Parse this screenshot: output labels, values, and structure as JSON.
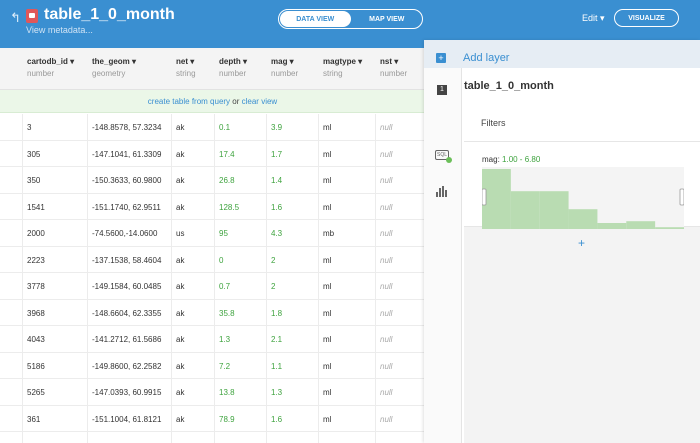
{
  "header": {
    "back_icon": "back-arrow-icon",
    "lock_icon": "lock-icon",
    "title": "table_1_0_month",
    "metadata_link": "View metadata...",
    "data_view": "DATA VIEW",
    "map_view": "MAP VIEW",
    "edit_label": "Edit ▾",
    "visualize_label": "VISUALIZE",
    "accent_color": "#3a8fd1"
  },
  "table": {
    "columns": [
      {
        "name": "cartodb_id ▾",
        "type": "number"
      },
      {
        "name": "the_geom ▾",
        "type": "geometry"
      },
      {
        "name": "net ▾",
        "type": "string"
      },
      {
        "name": "depth ▾",
        "type": "number"
      },
      {
        "name": "mag ▾",
        "type": "number"
      },
      {
        "name": "magtype ▾",
        "type": "string"
      },
      {
        "name": "nst ▾",
        "type": "number"
      }
    ],
    "banner": {
      "link1": "create table from query",
      "mid": " or ",
      "link2": "clear view"
    },
    "rows": [
      [
        "3",
        "-148.8578, 57.3234",
        "ak",
        "0.1",
        "3.9",
        "ml",
        "null"
      ],
      [
        "305",
        "-147.1041, 61.3309",
        "ak",
        "17.4",
        "1.7",
        "ml",
        "null"
      ],
      [
        "350",
        "-150.3633, 60.9800",
        "ak",
        "26.8",
        "1.4",
        "ml",
        "null"
      ],
      [
        "1541",
        "-151.1740, 62.9511",
        "ak",
        "128.5",
        "1.6",
        "ml",
        "null"
      ],
      [
        "2000",
        "-74.5600,-14.0600",
        "us",
        "95",
        "4.3",
        "mb",
        "null"
      ],
      [
        "2223",
        "-137.1538, 58.4604",
        "ak",
        "0",
        "2",
        "ml",
        "null"
      ],
      [
        "3778",
        "-149.1584, 60.0485",
        "ak",
        "0.7",
        "2",
        "ml",
        "null"
      ],
      [
        "3968",
        "-148.6604, 62.3355",
        "ak",
        "35.8",
        "1.8",
        "ml",
        "null"
      ],
      [
        "4043",
        "-141.2712, 61.5686",
        "ak",
        "1.3",
        "2.1",
        "ml",
        "null"
      ],
      [
        "5186",
        "-149.8600, 62.2582",
        "ak",
        "7.2",
        "1.1",
        "ml",
        "null"
      ],
      [
        "5265",
        "-147.0393, 60.9915",
        "ak",
        "13.8",
        "1.3",
        "ml",
        "null"
      ],
      [
        "361",
        "-151.1004, 61.8121",
        "ak",
        "78.9",
        "1.6",
        "ml",
        "null"
      ]
    ]
  },
  "panel": {
    "add_layer": "Add layer",
    "layer_number": "1",
    "layer_title": "table_1_0_month",
    "sql_icon": "sql-icon",
    "sql_icon_text": "SQL",
    "chart_icon": "bar-chart-icon",
    "filters_label": "Filters",
    "filter_name": "mag: ",
    "filter_range": "1.00 - 6.80",
    "add_filter": "+",
    "histogram_values": [
      1.0,
      0.63,
      0.63,
      0.33,
      0.1,
      0.13,
      0.03
    ]
  }
}
